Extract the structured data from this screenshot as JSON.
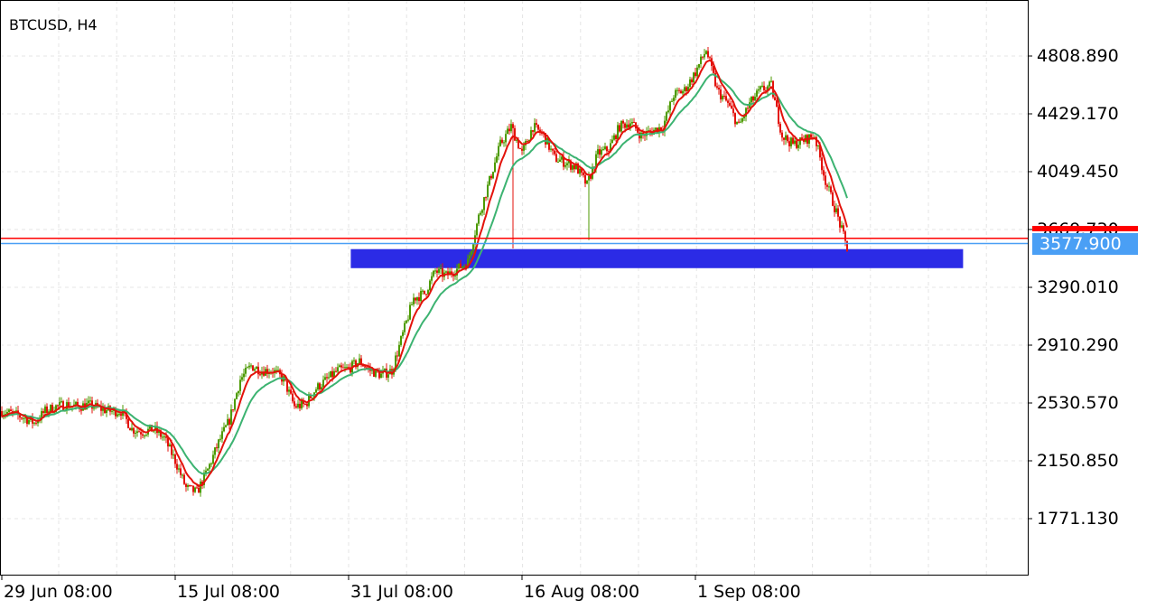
{
  "header": {
    "symbol_timeframe": "BTCUSD, H4"
  },
  "colors": {
    "bull": "#4c9a00",
    "bear": "#e3120b",
    "ma_fast": "#e3120b",
    "ma_slow": "#3cb371",
    "bid_line": "#4a9ff5",
    "ask_line": "#ff0000",
    "zone": "#2b2be6"
  },
  "chart_data": {
    "type": "candlestick",
    "title": "BTCUSD, H4",
    "timeframe": "H4",
    "ylim": [
      1450,
      5200
    ],
    "y_ticks": [
      "4808.890",
      "4429.170",
      "4049.450",
      "3669.730",
      "3290.010",
      "2910.290",
      "2530.570",
      "2150.850",
      "1771.130"
    ],
    "y_tick_values": [
      4808.89,
      4429.17,
      4049.45,
      3669.73,
      3290.01,
      2910.29,
      2530.57,
      2150.85,
      1771.13
    ],
    "x_ticks": [
      "29 Jun 08:00",
      "15 Jul 08:00",
      "31 Jul 08:00",
      "16 Aug 08:00",
      "1 Sep 08:00"
    ],
    "x_tick_days": [
      0,
      16,
      32,
      48,
      64
    ],
    "daily_close_approx": [
      2477,
      2459,
      2436,
      2400,
      2477,
      2507,
      2519,
      2507,
      2519,
      2495,
      2477,
      2477,
      2359,
      2341,
      2359,
      2299,
      2151,
      1973,
      1943,
      2092,
      2270,
      2418,
      2685,
      2774,
      2744,
      2744,
      2685,
      2507,
      2519,
      2626,
      2685,
      2744,
      2756,
      2804,
      2744,
      2715,
      2744,
      2982,
      3219,
      3249,
      3397,
      3367,
      3409,
      3456,
      3753,
      3990,
      4228,
      4346,
      4168,
      4346,
      4287,
      4139,
      4109,
      4079,
      3961,
      4168,
      4198,
      4346,
      4376,
      4287,
      4317,
      4346,
      4554,
      4584,
      4702,
      4850,
      4584,
      4495,
      4346,
      4495,
      4584,
      4613,
      4287,
      4228,
      4257,
      4287,
      3990,
      3783,
      3545
    ],
    "long_wicks": [
      {
        "day": 47.2,
        "low": 3545
      },
      {
        "day": 54.1,
        "low": 3600
      }
    ],
    "moving_averages": [
      {
        "color": "#e3120b",
        "period": 8
      },
      {
        "color": "#3cb371",
        "period": 21
      }
    ],
    "bid_price": "3577.900",
    "bid_value": 3577.9,
    "ask_value": 3612,
    "grid": true,
    "zone": {
      "from_day": 32.2,
      "to_day": 88.7,
      "top": 3541,
      "bottom": 3416
    }
  }
}
